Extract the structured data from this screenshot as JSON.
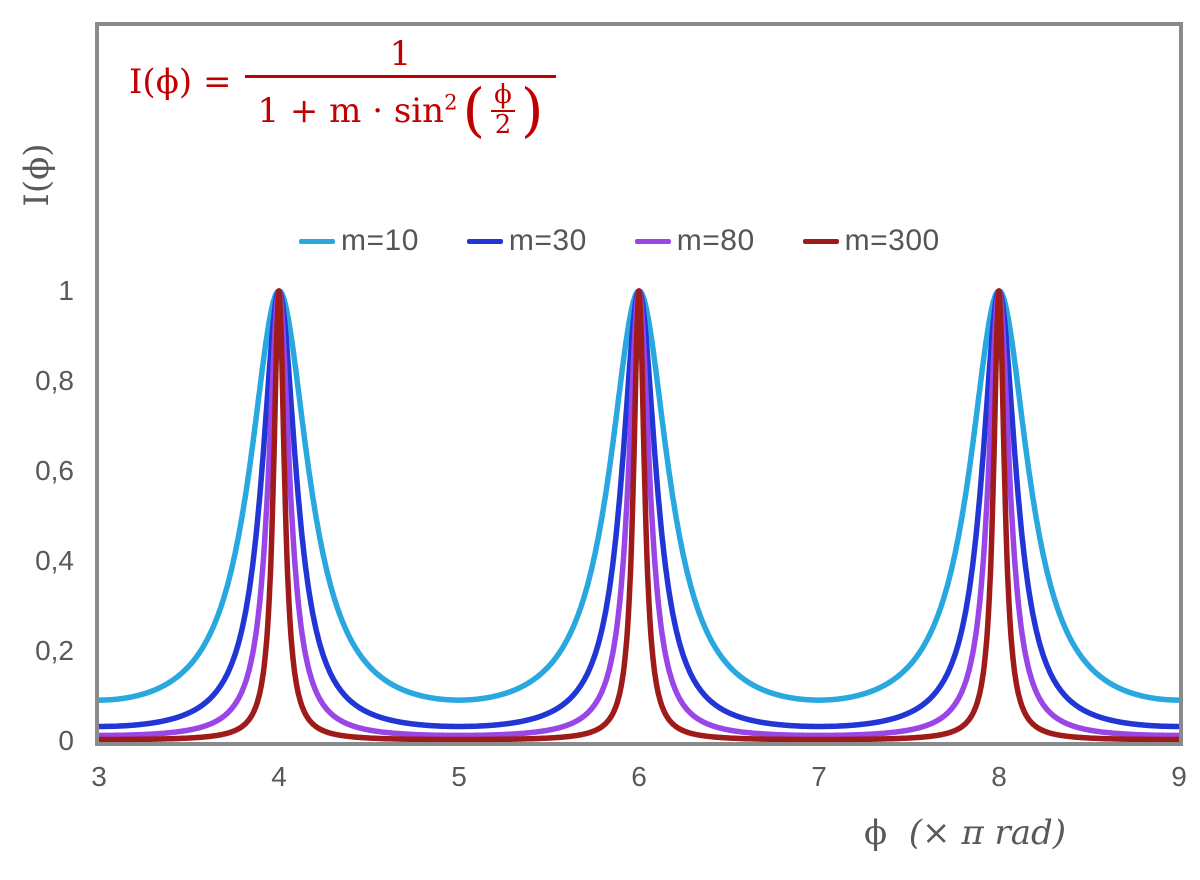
{
  "formula": {
    "lhs": "I(ϕ) =",
    "numerator": "1",
    "denominator_prefix": "1 + m · sin",
    "denominator_sup": "2",
    "paren_open": "(",
    "paren_close": ")",
    "inner_numerator": "ϕ",
    "inner_denominator": "2",
    "color": "#c00000"
  },
  "axes": {
    "y_title": "I(ϕ)",
    "x_title_phi": "ϕ",
    "x_title_rest": "(× π rad)"
  },
  "colors": {
    "plot_border": "#8a8a8a",
    "tick_text": "#595959",
    "legend_text": "#555555",
    "formula_red": "#c00000"
  },
  "chart_data": {
    "type": "line",
    "title": "",
    "xlabel": "ϕ (× π rad)",
    "ylabel": "I(ϕ)",
    "formula": "I(phi) = 1 / (1 + m * sin^2(phi/2)), phi = x * pi rad",
    "x_range": [
      3,
      9
    ],
    "ylim": [
      0,
      1.59
    ],
    "grid": false,
    "legend_position": "top-center-inside",
    "peaks_at_x": [
      4,
      6,
      8
    ],
    "x_ticks": [
      {
        "label": "3",
        "value": 3
      },
      {
        "label": "4",
        "value": 4
      },
      {
        "label": "5",
        "value": 5
      },
      {
        "label": "6",
        "value": 6
      },
      {
        "label": "7",
        "value": 7
      },
      {
        "label": "8",
        "value": 8
      },
      {
        "label": "9",
        "value": 9
      }
    ],
    "y_ticks": [
      {
        "label": "1",
        "value": 1
      },
      {
        "label": "0,8",
        "value": 0.8
      },
      {
        "label": "0,6",
        "value": 0.6
      },
      {
        "label": "0,4",
        "value": 0.4
      },
      {
        "label": "0,2",
        "value": 0.2
      },
      {
        "label": "0",
        "value": 0
      }
    ],
    "sample_x": [
      3,
      3.25,
      3.5,
      3.75,
      4,
      4.25,
      4.5,
      4.75,
      5,
      5.25,
      5.5,
      5.75,
      6,
      6.25,
      6.5,
      6.75,
      7,
      7.25,
      7.5,
      7.75,
      8,
      8.25,
      8.5,
      8.75,
      9
    ],
    "series": [
      {
        "name": "m=10",
        "m": 10,
        "color": "#29a8e0",
        "values": [
          0.0909,
          0.1049,
          0.1667,
          0.4058,
          1.0,
          0.4058,
          0.1667,
          0.1049,
          0.0909,
          0.1049,
          0.1667,
          0.4058,
          1.0,
          0.4058,
          0.1667,
          0.1049,
          0.0909,
          0.1049,
          0.1667,
          0.4058,
          1.0,
          0.4058,
          0.1667,
          0.1049,
          0.0909
        ]
      },
      {
        "name": "m=30",
        "m": 30,
        "color": "#2236d6",
        "values": [
          0.0323,
          0.0376,
          0.0625,
          0.1854,
          1.0,
          0.1854,
          0.0625,
          0.0376,
          0.0323,
          0.0376,
          0.0625,
          0.1854,
          1.0,
          0.1854,
          0.0625,
          0.0376,
          0.0323,
          0.0376,
          0.0625,
          0.1854,
          1.0,
          0.1854,
          0.0625,
          0.0376,
          0.0323
        ]
      },
      {
        "name": "m=80",
        "m": 80,
        "color": "#9a45e6",
        "values": [
          0.0123,
          0.0144,
          0.0244,
          0.0786,
          1.0,
          0.0786,
          0.0244,
          0.0144,
          0.0123,
          0.0144,
          0.0244,
          0.0786,
          1.0,
          0.0786,
          0.0244,
          0.0144,
          0.0123,
          0.0144,
          0.0244,
          0.0786,
          1.0,
          0.0786,
          0.0244,
          0.0144,
          0.0123
        ]
      },
      {
        "name": "m=300",
        "m": 300,
        "color": "#9e1b1a",
        "values": [
          0.0033,
          0.0039,
          0.0066,
          0.0223,
          1.0,
          0.0223,
          0.0066,
          0.0039,
          0.0033,
          0.0039,
          0.0066,
          0.0223,
          1.0,
          0.0223,
          0.0066,
          0.0039,
          0.0033,
          0.0039,
          0.0066,
          0.0223,
          1.0,
          0.0223,
          0.0066,
          0.0039,
          0.0033
        ]
      }
    ]
  }
}
